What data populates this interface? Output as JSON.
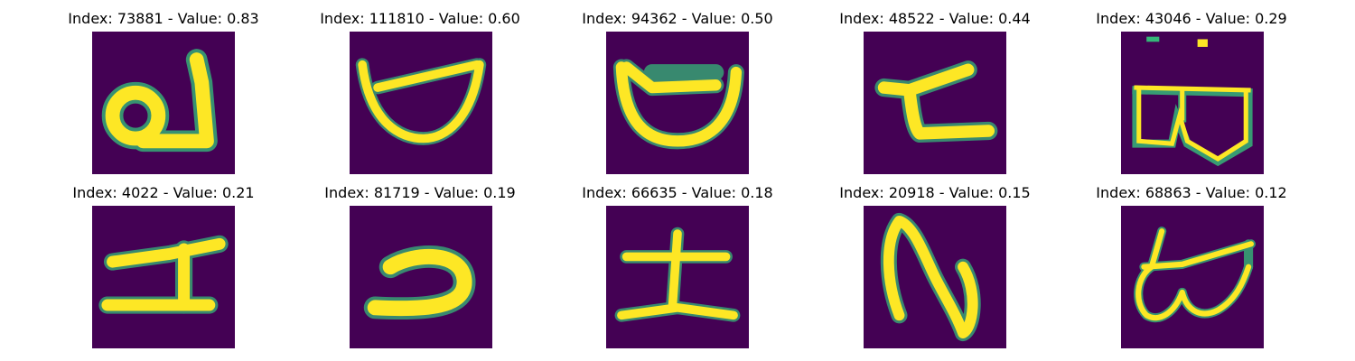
{
  "figure": {
    "colormap": {
      "background": "#440154",
      "low": "#31688e",
      "mid": "#35b779",
      "high": "#fde725"
    },
    "panels": [
      {
        "title": "Index: 73881 - Value: 0.83",
        "glyph": "la"
      },
      {
        "title": "Index: 111810 - Value: 0.60",
        "glyph": "bowl"
      },
      {
        "title": "Index: 94362 - Value: 0.50",
        "glyph": "bowl-bar"
      },
      {
        "title": "Index: 48522 - Value: 0.44",
        "glyph": "t-hook"
      },
      {
        "title": "Index: 43046 - Value: 0.29",
        "glyph": "double-loop-dots"
      },
      {
        "title": "Index: 4022 - Value: 0.21",
        "glyph": "h-cross"
      },
      {
        "title": "Index: 81719 - Value: 0.19",
        "glyph": "reverse-c"
      },
      {
        "title": "Index: 66635 - Value: 0.18",
        "glyph": "earth-cross"
      },
      {
        "title": "Index: 20918 - Value: 0.15",
        "glyph": "n-wave"
      },
      {
        "title": "Index: 68863 - Value: 0.12",
        "glyph": "double-loop-bar"
      }
    ]
  }
}
